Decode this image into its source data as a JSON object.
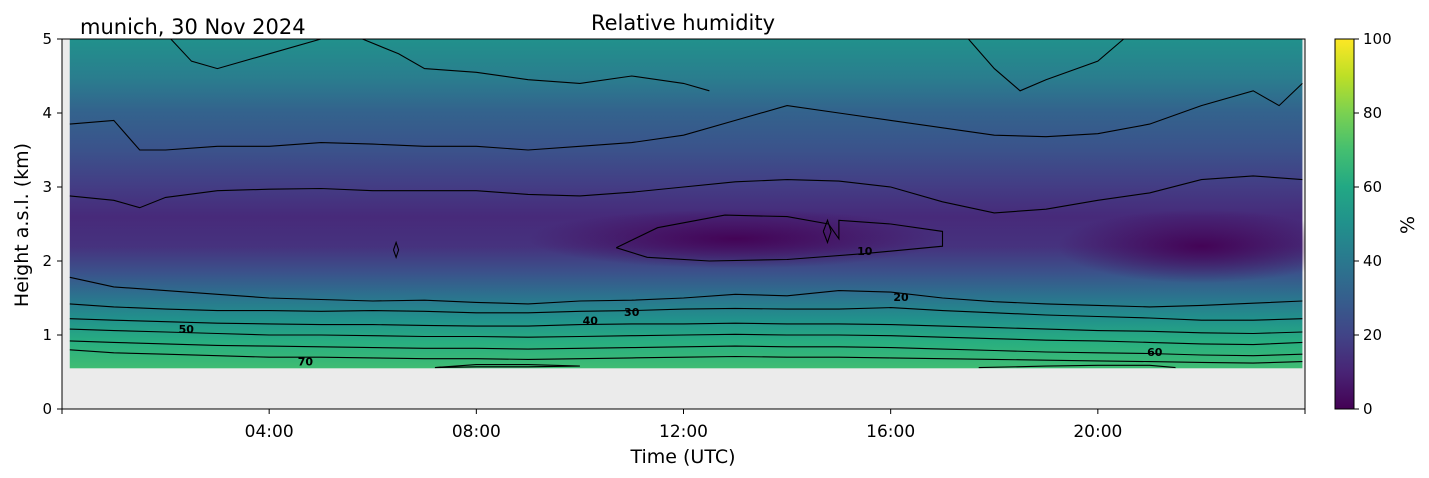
{
  "chart_data": {
    "type": "heatmap",
    "title": "Relative humidity",
    "subtitle": "munich, 30 Nov 2024",
    "xlabel": "Time (UTC)",
    "ylabel": "Height a.s.l. (km)",
    "xlim_hours": [
      0,
      24
    ],
    "ylim": [
      0,
      5
    ],
    "x_ticks": [
      {
        "hour": 4,
        "label": "04:00"
      },
      {
        "hour": 8,
        "label": "08:00"
      },
      {
        "hour": 12,
        "label": "12:00"
      },
      {
        "hour": 16,
        "label": "16:00"
      },
      {
        "hour": 20,
        "label": "20:00"
      }
    ],
    "y_ticks": [
      "0",
      "1",
      "2",
      "3",
      "4",
      "5"
    ],
    "colorbar": {
      "label": "%",
      "range": [
        0,
        100
      ],
      "ticks": [
        "0",
        "20",
        "40",
        "60",
        "80",
        "100"
      ],
      "colormap": "viridis"
    },
    "no_data_below_km": 0.55,
    "no_data_color": "#ebebeb",
    "contour_labels": [
      {
        "text": "10",
        "hour": 15.5,
        "km": 2.12
      },
      {
        "text": "20",
        "hour": 16.2,
        "km": 1.5
      },
      {
        "text": "30",
        "hour": 11.0,
        "km": 1.3
      },
      {
        "text": "40",
        "hour": 10.2,
        "km": 1.18
      },
      {
        "text": "50",
        "hour": 2.4,
        "km": 1.07
      },
      {
        "text": "60",
        "hour": 21.1,
        "km": 0.76
      },
      {
        "text": "70",
        "hour": 4.7,
        "km": 0.63
      }
    ],
    "contours": [
      {
        "level": 10,
        "points": [
          [
            10.7,
            2.18
          ],
          [
            11.5,
            2.45
          ],
          [
            12.8,
            2.62
          ],
          [
            14.0,
            2.6
          ],
          [
            14.8,
            2.5
          ],
          [
            15.0,
            2.3
          ],
          [
            15.0,
            2.55
          ],
          [
            16.0,
            2.5
          ],
          [
            17.0,
            2.4
          ],
          [
            17.0,
            2.2
          ],
          [
            15.5,
            2.1
          ],
          [
            14.0,
            2.02
          ],
          [
            12.5,
            2.0
          ],
          [
            11.3,
            2.05
          ],
          [
            10.7,
            2.18
          ]
        ]
      },
      {
        "level": 20,
        "points": [
          [
            0.15,
            1.78
          ],
          [
            1,
            1.65
          ],
          [
            2,
            1.6
          ],
          [
            3,
            1.55
          ],
          [
            4,
            1.5
          ],
          [
            5,
            1.48
          ],
          [
            6,
            1.46
          ],
          [
            7,
            1.47
          ],
          [
            8,
            1.44
          ],
          [
            9,
            1.42
          ],
          [
            10,
            1.46
          ],
          [
            11,
            1.47
          ],
          [
            12,
            1.5
          ],
          [
            13,
            1.55
          ],
          [
            14,
            1.53
          ],
          [
            15,
            1.6
          ],
          [
            16,
            1.58
          ],
          [
            17,
            1.5
          ],
          [
            18,
            1.45
          ],
          [
            19,
            1.42
          ],
          [
            20,
            1.4
          ],
          [
            21,
            1.38
          ],
          [
            22,
            1.4
          ],
          [
            23,
            1.43
          ],
          [
            23.95,
            1.46
          ]
        ]
      },
      {
        "level": 30,
        "points": [
          [
            0.15,
            1.42
          ],
          [
            1,
            1.38
          ],
          [
            2,
            1.35
          ],
          [
            3,
            1.33
          ],
          [
            4,
            1.33
          ],
          [
            5,
            1.32
          ],
          [
            6,
            1.33
          ],
          [
            7,
            1.32
          ],
          [
            8,
            1.3
          ],
          [
            9,
            1.3
          ],
          [
            10,
            1.32
          ],
          [
            11,
            1.33
          ],
          [
            12,
            1.35
          ],
          [
            13,
            1.36
          ],
          [
            14,
            1.35
          ],
          [
            15,
            1.35
          ],
          [
            16,
            1.37
          ],
          [
            17,
            1.33
          ],
          [
            18,
            1.3
          ],
          [
            19,
            1.27
          ],
          [
            20,
            1.25
          ],
          [
            21,
            1.23
          ],
          [
            22,
            1.2
          ],
          [
            23,
            1.2
          ],
          [
            23.95,
            1.22
          ]
        ]
      },
      {
        "level": 40,
        "points": [
          [
            0.15,
            1.22
          ],
          [
            1,
            1.2
          ],
          [
            2,
            1.18
          ],
          [
            3,
            1.16
          ],
          [
            4,
            1.15
          ],
          [
            5,
            1.14
          ],
          [
            6,
            1.14
          ],
          [
            7,
            1.13
          ],
          [
            8,
            1.12
          ],
          [
            9,
            1.12
          ],
          [
            10,
            1.14
          ],
          [
            11,
            1.15
          ],
          [
            12,
            1.15
          ],
          [
            13,
            1.16
          ],
          [
            14,
            1.15
          ],
          [
            15,
            1.15
          ],
          [
            16,
            1.14
          ],
          [
            17,
            1.12
          ],
          [
            18,
            1.1
          ],
          [
            19,
            1.08
          ],
          [
            20,
            1.06
          ],
          [
            21,
            1.05
          ],
          [
            22,
            1.03
          ],
          [
            23,
            1.02
          ],
          [
            23.95,
            1.04
          ]
        ]
      },
      {
        "level": 50,
        "points": [
          [
            0.15,
            1.08
          ],
          [
            1,
            1.06
          ],
          [
            2,
            1.04
          ],
          [
            3,
            1.02
          ],
          [
            4,
            1.0
          ],
          [
            5,
            1.0
          ],
          [
            6,
            0.99
          ],
          [
            7,
            0.98
          ],
          [
            8,
            0.98
          ],
          [
            9,
            0.97
          ],
          [
            10,
            0.98
          ],
          [
            11,
            0.99
          ],
          [
            12,
            1.0
          ],
          [
            13,
            1.01
          ],
          [
            14,
            1.0
          ],
          [
            15,
            1.0
          ],
          [
            16,
            0.99
          ],
          [
            17,
            0.97
          ],
          [
            18,
            0.95
          ],
          [
            19,
            0.93
          ],
          [
            20,
            0.92
          ],
          [
            21,
            0.9
          ],
          [
            22,
            0.88
          ],
          [
            23,
            0.87
          ],
          [
            23.95,
            0.9
          ]
        ]
      },
      {
        "level": 60,
        "points": [
          [
            0.15,
            0.92
          ],
          [
            1,
            0.9
          ],
          [
            2,
            0.88
          ],
          [
            3,
            0.86
          ],
          [
            4,
            0.85
          ],
          [
            5,
            0.84
          ],
          [
            6,
            0.83
          ],
          [
            7,
            0.82
          ],
          [
            8,
            0.82
          ],
          [
            9,
            0.81
          ],
          [
            10,
            0.82
          ],
          [
            11,
            0.83
          ],
          [
            12,
            0.84
          ],
          [
            13,
            0.85
          ],
          [
            14,
            0.84
          ],
          [
            15,
            0.84
          ],
          [
            16,
            0.83
          ],
          [
            17,
            0.81
          ],
          [
            18,
            0.79
          ],
          [
            19,
            0.77
          ],
          [
            20,
            0.76
          ],
          [
            21,
            0.75
          ],
          [
            22,
            0.73
          ],
          [
            23,
            0.72
          ],
          [
            23.95,
            0.74
          ]
        ]
      },
      {
        "level": 70,
        "points": [
          [
            0.15,
            0.8
          ],
          [
            1,
            0.76
          ],
          [
            2,
            0.74
          ],
          [
            3,
            0.72
          ],
          [
            4,
            0.7
          ],
          [
            5,
            0.7
          ],
          [
            6,
            0.69
          ],
          [
            7,
            0.68
          ],
          [
            8,
            0.68
          ],
          [
            9,
            0.67
          ],
          [
            10,
            0.68
          ],
          [
            11,
            0.69
          ],
          [
            12,
            0.7
          ],
          [
            13,
            0.71
          ],
          [
            14,
            0.7
          ],
          [
            15,
            0.7
          ],
          [
            16,
            0.69
          ],
          [
            17,
            0.68
          ],
          [
            18,
            0.67
          ],
          [
            19,
            0.66
          ],
          [
            20,
            0.65
          ],
          [
            21,
            0.64
          ],
          [
            22,
            0.63
          ],
          [
            23,
            0.62
          ],
          [
            23.95,
            0.64
          ]
        ]
      },
      {
        "level": 80,
        "points": [
          [
            7.2,
            0.56
          ],
          [
            8,
            0.6
          ],
          [
            9,
            0.6
          ],
          [
            10,
            0.58
          ],
          [
            9,
            0.57
          ],
          [
            8,
            0.57
          ],
          [
            7.2,
            0.56
          ]
        ]
      },
      {
        "level": 80,
        "points": [
          [
            17.7,
            0.56
          ],
          [
            19,
            0.58
          ],
          [
            20,
            0.59
          ],
          [
            21,
            0.59
          ],
          [
            21.5,
            0.56
          ]
        ]
      },
      {
        "level": 10,
        "points": [
          [
            6.4,
            2.15
          ],
          [
            6.45,
            2.25
          ],
          [
            6.5,
            2.15
          ],
          [
            6.45,
            2.05
          ],
          [
            6.4,
            2.15
          ]
        ]
      },
      {
        "level": 10,
        "points": [
          [
            14.7,
            2.4
          ],
          [
            14.78,
            2.55
          ],
          [
            14.85,
            2.4
          ],
          [
            14.78,
            2.25
          ],
          [
            14.7,
            2.4
          ]
        ]
      },
      {
        "level": 10,
        "points": [
          [
            0.15,
            2.88
          ],
          [
            1,
            2.82
          ],
          [
            1.5,
            2.72
          ],
          [
            2,
            2.86
          ],
          [
            3,
            2.95
          ],
          [
            4,
            2.97
          ],
          [
            5,
            2.98
          ],
          [
            6,
            2.95
          ],
          [
            7,
            2.95
          ],
          [
            8,
            2.95
          ],
          [
            9,
            2.9
          ],
          [
            10,
            2.88
          ],
          [
            11,
            2.93
          ],
          [
            12,
            3.0
          ],
          [
            13,
            3.07
          ],
          [
            14,
            3.1
          ],
          [
            15,
            3.08
          ],
          [
            16,
            3.0
          ],
          [
            17,
            2.8
          ],
          [
            18,
            2.65
          ],
          [
            19,
            2.7
          ],
          [
            20,
            2.82
          ],
          [
            21,
            2.92
          ],
          [
            22,
            3.1
          ],
          [
            23,
            3.15
          ],
          [
            23.95,
            3.1
          ]
        ]
      },
      {
        "level": 20,
        "points": [
          [
            0.15,
            3.85
          ],
          [
            1,
            3.9
          ],
          [
            1.5,
            3.5
          ],
          [
            2,
            3.5
          ],
          [
            3,
            3.55
          ],
          [
            4,
            3.55
          ],
          [
            5,
            3.6
          ],
          [
            6,
            3.58
          ],
          [
            7,
            3.55
          ],
          [
            8,
            3.55
          ],
          [
            9,
            3.5
          ],
          [
            10,
            3.55
          ],
          [
            11,
            3.6
          ],
          [
            12,
            3.7
          ],
          [
            13,
            3.9
          ],
          [
            14,
            4.1
          ],
          [
            15,
            4.0
          ],
          [
            16,
            3.9
          ],
          [
            17,
            3.8
          ],
          [
            18,
            3.7
          ],
          [
            19,
            3.68
          ],
          [
            20,
            3.72
          ],
          [
            21,
            3.85
          ],
          [
            22,
            4.1
          ],
          [
            23,
            4.3
          ],
          [
            23.5,
            4.1
          ],
          [
            23.95,
            4.4
          ]
        ]
      },
      {
        "level": 30,
        "points": [
          [
            5.8,
            5.0
          ],
          [
            6.5,
            4.8
          ],
          [
            7.0,
            4.6
          ],
          [
            8,
            4.55
          ],
          [
            9,
            4.45
          ],
          [
            10,
            4.4
          ],
          [
            11,
            4.5
          ],
          [
            12,
            4.4
          ],
          [
            12.5,
            4.3
          ]
        ]
      },
      {
        "level": 30,
        "points": [
          [
            2.1,
            5.0
          ],
          [
            2.5,
            4.7
          ],
          [
            3.0,
            4.6
          ],
          [
            4.0,
            4.8
          ],
          [
            5.0,
            5.0
          ]
        ]
      },
      {
        "level": 30,
        "points": [
          [
            17.5,
            5.0
          ],
          [
            18.0,
            4.6
          ],
          [
            18.5,
            4.3
          ],
          [
            19.0,
            4.45
          ],
          [
            20.0,
            4.7
          ],
          [
            20.5,
            5.0
          ]
        ]
      }
    ]
  }
}
